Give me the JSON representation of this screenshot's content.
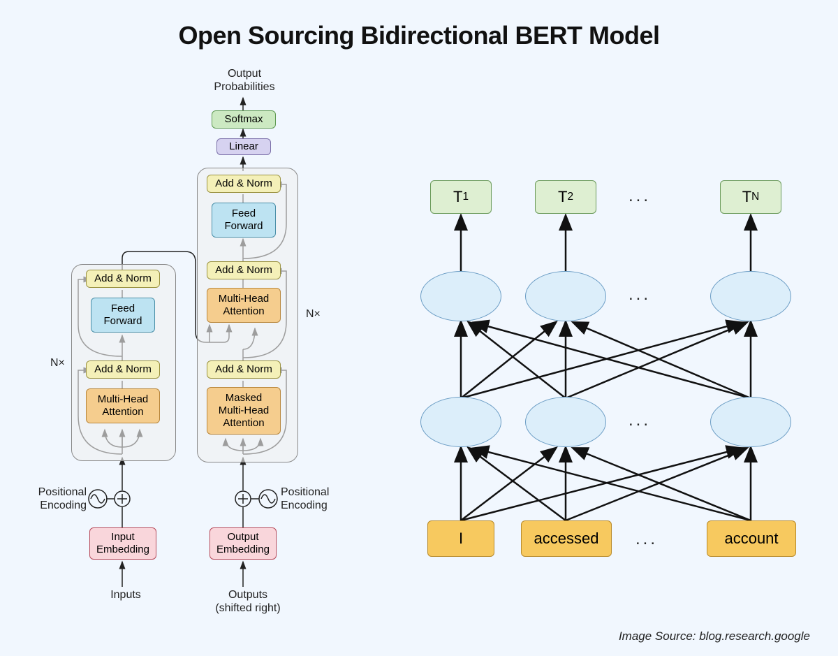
{
  "title": "Open Sourcing Bidirectional BERT Model",
  "credit": "Image Source: blog.research.google",
  "colors": {
    "background": "#f1f7fe",
    "pink_fill": "#f9d6db",
    "pink_border": "#b84a5a",
    "yellow_fill": "#f4f0b8",
    "yellow_border": "#9a9240",
    "orange_fill": "#f5cd8e",
    "orange_border": "#b8863b",
    "blue_fill": "#bde3f2",
    "blue_border": "#4a8fa8",
    "green_fill": "#cce9c2",
    "green_border": "#5f9a52",
    "purple_fill": "#d6d2f0",
    "purple_border": "#7a6fa8",
    "container_fill": "#eeeeee99",
    "container_border": "#888888",
    "word_fill": "#f7c95f",
    "word_border": "#b88a2a",
    "ell_fill": "#dceefa",
    "ell_border": "#6a9cc4",
    "tbox_fill": "#deefd2",
    "tbox_border": "#6a9a5a",
    "arrow": "#222222"
  },
  "transformer": {
    "output_prob": "Output\nProbabilities",
    "softmax": "Softmax",
    "linear": "Linear",
    "add_norm": "Add & Norm",
    "feed_forward": "Feed\nForward",
    "mha": "Multi-Head\nAttention",
    "masked_mha": "Masked\nMulti-Head\nAttention",
    "nx": "N×",
    "pos_enc": "Positional\nEncoding",
    "input_emb": "Input\nEmbedding",
    "output_emb": "Output\nEmbedding",
    "inputs": "Inputs",
    "outputs": "Outputs\n(shifted right)"
  },
  "bert": {
    "t1": "T",
    "t1_sub": "1",
    "t2": "T",
    "t2_sub": "2",
    "tn": "T",
    "tn_sub": "N",
    "dots": "...",
    "w1": "I",
    "w2": "accessed",
    "w3": "account"
  }
}
